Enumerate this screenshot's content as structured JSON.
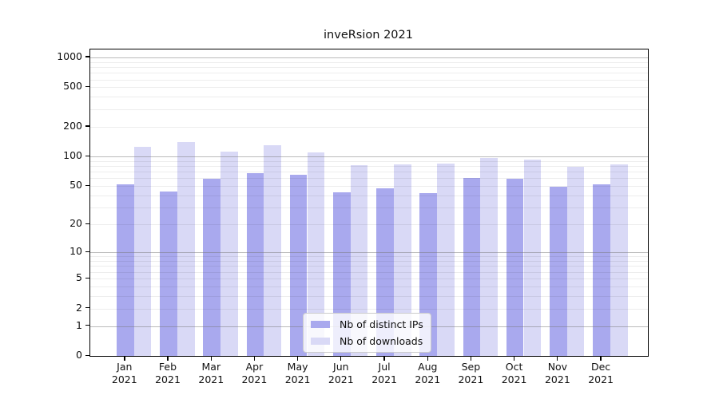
{
  "title": "inveRsion 2021",
  "chart_data": {
    "type": "bar",
    "scale": "log1p",
    "title": "inveRsion 2021",
    "xlabel": "",
    "ylabel": "",
    "grid": true,
    "legend_position": "lower center",
    "categories": [
      {
        "month": "Jan",
        "year": "2021"
      },
      {
        "month": "Feb",
        "year": "2021"
      },
      {
        "month": "Mar",
        "year": "2021"
      },
      {
        "month": "Apr",
        "year": "2021"
      },
      {
        "month": "May",
        "year": "2021"
      },
      {
        "month": "Jun",
        "year": "2021"
      },
      {
        "month": "Jul",
        "year": "2021"
      },
      {
        "month": "Aug",
        "year": "2021"
      },
      {
        "month": "Sep",
        "year": "2021"
      },
      {
        "month": "Oct",
        "year": "2021"
      },
      {
        "month": "Nov",
        "year": "2021"
      },
      {
        "month": "Dec",
        "year": "2021"
      }
    ],
    "series": [
      {
        "name": "Nb of distinct IPs",
        "color": "#a9a9ee",
        "values": [
          52,
          44,
          59,
          68,
          65,
          43,
          47,
          42,
          60,
          59,
          49,
          52
        ]
      },
      {
        "name": "Nb of downloads",
        "color": "#d9d9f6",
        "values": [
          125,
          140,
          113,
          130,
          110,
          82,
          83,
          84,
          97,
          93,
          78,
          83
        ]
      }
    ],
    "y_ticks": [
      0,
      1,
      2,
      5,
      10,
      20,
      50,
      100,
      200,
      500,
      1000
    ],
    "y_tick_labels": [
      "0",
      "1",
      "2",
      "5",
      "10",
      "20",
      "50",
      "100",
      "200",
      "500",
      "1000"
    ],
    "ylim": [
      0,
      1200
    ],
    "colors": {
      "major_grid": "#9e9e9e",
      "minor_grid": "#ebebeb",
      "axis": "#000000",
      "background": "#ffffff"
    }
  }
}
